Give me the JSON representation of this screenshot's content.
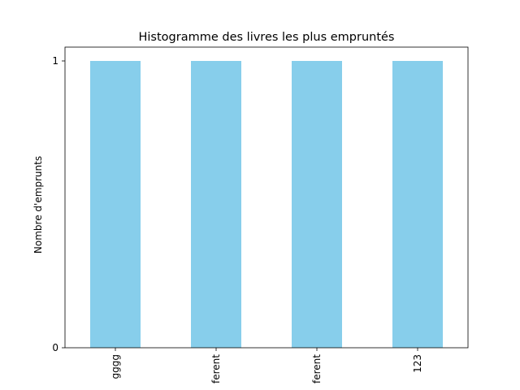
{
  "chart_data": {
    "type": "bar",
    "title": "Histogramme des livres les plus empruntés",
    "xlabel": "",
    "ylabel": "Nombre d'emprunts",
    "categories": [
      "gggg",
      "ferent",
      "ferent",
      "123"
    ],
    "values": [
      1,
      1,
      1,
      1
    ],
    "ylim": [
      0,
      1
    ],
    "yticks": [
      "0",
      "1"
    ],
    "grid": false,
    "legend": "none",
    "bar_color": "#87CEEB"
  }
}
